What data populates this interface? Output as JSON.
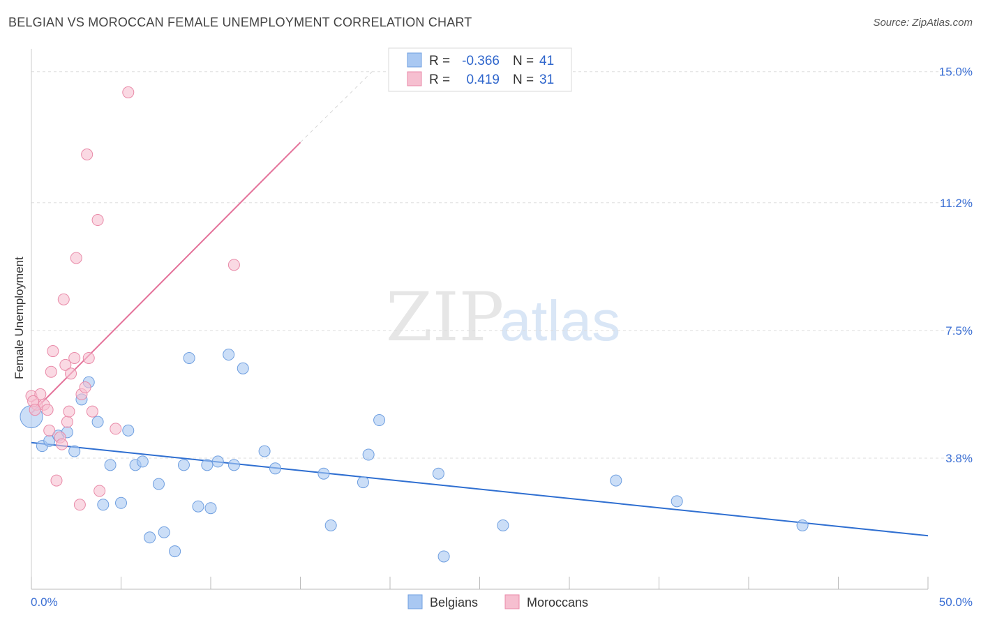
{
  "title": "BELGIAN VS MOROCCAN FEMALE UNEMPLOYMENT CORRELATION CHART",
  "source": "Source: ZipAtlas.com",
  "watermark": {
    "zip": "ZIP",
    "atlas": "atlas"
  },
  "colors": {
    "belgians_fill": "#a9c8f2",
    "belgians_stroke": "#6f9fe0",
    "belgians_line": "#2f6fd1",
    "moroccans_fill": "#f6bfd0",
    "moroccans_stroke": "#e98aa8",
    "moroccans_line": "#e4729a",
    "axis_text": "#3b6fd4",
    "grid": "#dddddd"
  },
  "legend": {
    "rows": [
      {
        "r_label": "R =",
        "r_value": "-0.366",
        "n_label": "N =",
        "n_value": "41"
      },
      {
        "r_label": "R =",
        "r_value": "0.419",
        "n_label": "N =",
        "n_value": "31"
      }
    ]
  },
  "bottom_legend": [
    "Belgians",
    "Moroccans"
  ],
  "chart_data": {
    "type": "scatter",
    "title": "BELGIAN VS MOROCCAN FEMALE UNEMPLOYMENT CORRELATION CHART",
    "xlabel": "",
    "ylabel": "Female Unemployment",
    "xlim": [
      0,
      50
    ],
    "ylim": [
      0,
      15.5
    ],
    "x_tick_labels": [
      "0.0%",
      "50.0%"
    ],
    "y_ticks": [
      3.8,
      7.5,
      11.2,
      15.0
    ],
    "y_tick_labels": [
      "3.8%",
      "7.5%",
      "11.2%",
      "15.0%"
    ],
    "grid": true,
    "legend_position": "top-center",
    "series": [
      {
        "name": "Belgians",
        "r": -0.366,
        "n": 41,
        "trend": {
          "x0": 0,
          "y0": 4.25,
          "x1": 50,
          "y1": 1.55
        },
        "points": [
          [
            0.0,
            5.0
          ],
          [
            0.6,
            4.15
          ],
          [
            1.0,
            4.3
          ],
          [
            1.5,
            4.45
          ],
          [
            2.0,
            4.55
          ],
          [
            2.4,
            4.0
          ],
          [
            2.8,
            5.5
          ],
          [
            3.2,
            6.0
          ],
          [
            3.7,
            4.85
          ],
          [
            4.0,
            2.45
          ],
          [
            4.4,
            3.6
          ],
          [
            5.0,
            2.5
          ],
          [
            5.4,
            4.6
          ],
          [
            5.8,
            3.6
          ],
          [
            6.2,
            3.7
          ],
          [
            6.6,
            1.5
          ],
          [
            7.1,
            3.05
          ],
          [
            7.4,
            1.65
          ],
          [
            8.0,
            1.1
          ],
          [
            8.5,
            3.6
          ],
          [
            8.8,
            6.7
          ],
          [
            9.3,
            2.4
          ],
          [
            9.8,
            3.6
          ],
          [
            10.0,
            2.35
          ],
          [
            10.4,
            3.7
          ],
          [
            11.0,
            6.8
          ],
          [
            11.3,
            3.6
          ],
          [
            11.8,
            6.4
          ],
          [
            13.0,
            4.0
          ],
          [
            13.6,
            3.5
          ],
          [
            16.3,
            3.35
          ],
          [
            16.7,
            1.85
          ],
          [
            18.5,
            3.1
          ],
          [
            18.8,
            3.9
          ],
          [
            19.4,
            4.9
          ],
          [
            23.0,
            0.95
          ],
          [
            22.7,
            3.35
          ],
          [
            26.3,
            1.85
          ],
          [
            32.6,
            3.15
          ],
          [
            36.0,
            2.55
          ],
          [
            43.0,
            1.85
          ]
        ]
      },
      {
        "name": "Moroccans",
        "r": 0.419,
        "n": 31,
        "trend": {
          "x0": 0,
          "y0": 5.1,
          "x1": 15,
          "y1": 12.95,
          "dash_x1": 19,
          "dash_y1": 15.0
        },
        "points": [
          [
            0.0,
            5.6
          ],
          [
            0.3,
            5.35
          ],
          [
            0.5,
            5.65
          ],
          [
            0.7,
            5.35
          ],
          [
            0.9,
            5.2
          ],
          [
            1.0,
            4.6
          ],
          [
            1.1,
            6.3
          ],
          [
            1.2,
            6.9
          ],
          [
            1.4,
            3.15
          ],
          [
            1.6,
            4.4
          ],
          [
            1.7,
            4.2
          ],
          [
            1.8,
            8.4
          ],
          [
            1.9,
            6.5
          ],
          [
            2.0,
            4.85
          ],
          [
            2.1,
            5.15
          ],
          [
            2.2,
            6.25
          ],
          [
            2.4,
            6.7
          ],
          [
            2.5,
            9.6
          ],
          [
            2.7,
            2.45
          ],
          [
            2.8,
            5.65
          ],
          [
            3.0,
            5.85
          ],
          [
            3.1,
            12.6
          ],
          [
            3.2,
            6.7
          ],
          [
            3.4,
            5.15
          ],
          [
            3.7,
            10.7
          ],
          [
            3.8,
            2.85
          ],
          [
            4.7,
            4.65
          ],
          [
            5.4,
            14.4
          ],
          [
            11.3,
            9.4
          ],
          [
            0.1,
            5.45
          ],
          [
            0.2,
            5.2
          ]
        ]
      }
    ]
  }
}
